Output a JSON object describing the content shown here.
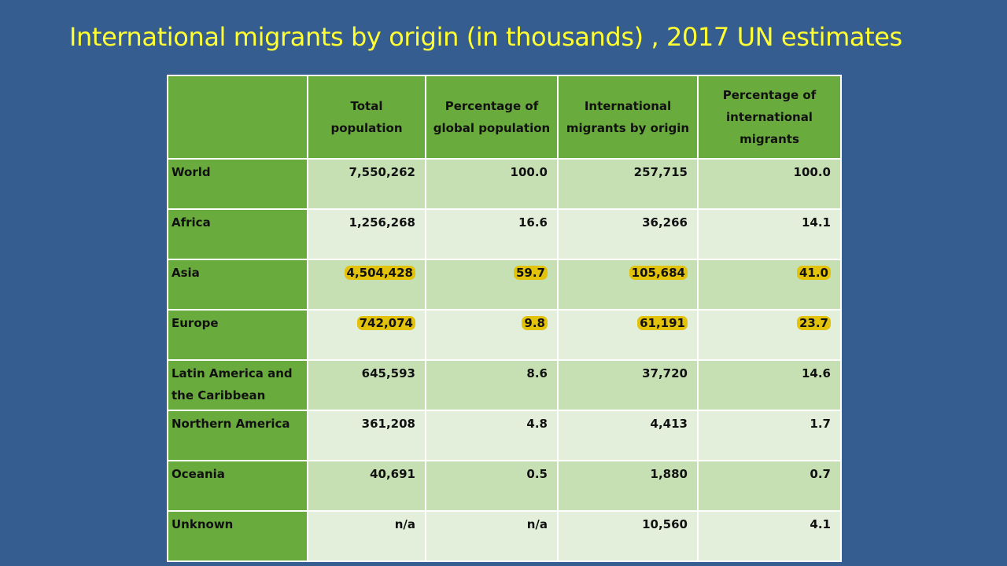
{
  "slide": {
    "title": "International migrants by origin (in thousands) , 2017 UN estimates"
  },
  "table": {
    "headers": [
      "",
      "Total population",
      "Percentage of global population",
      "International migrants by origin",
      "Percentage of international migrants"
    ],
    "rows": [
      {
        "region": "World",
        "total_population": "7,550,262",
        "pct_global_population": "100.0",
        "migrants_by_origin": "257,715",
        "pct_international_migrants": "100.0",
        "highlighted": false
      },
      {
        "region": "Africa",
        "total_population": "1,256,268",
        "pct_global_population": "16.6",
        "migrants_by_origin": "36,266",
        "pct_international_migrants": "14.1",
        "highlighted": false
      },
      {
        "region": "Asia",
        "total_population": "4,504,428",
        "pct_global_population": "59.7",
        "migrants_by_origin": "105,684",
        "pct_international_migrants": "41.0",
        "highlighted": true
      },
      {
        "region": "Europe",
        "total_population": "742,074",
        "pct_global_population": "9.8",
        "migrants_by_origin": "61,191",
        "pct_international_migrants": "23.7",
        "highlighted": true
      },
      {
        "region": "Latin America and the Caribbean",
        "total_population": "645,593",
        "pct_global_population": "8.6",
        "migrants_by_origin": "37,720",
        "pct_international_migrants": "14.6",
        "highlighted": false
      },
      {
        "region": "Northern America",
        "total_population": "361,208",
        "pct_global_population": "4.8",
        "migrants_by_origin": "4,413",
        "pct_international_migrants": "1.7",
        "highlighted": false
      },
      {
        "region": "Oceania",
        "total_population": "40,691",
        "pct_global_population": "0.5",
        "migrants_by_origin": "1,880",
        "pct_international_migrants": "0.7",
        "highlighted": false
      },
      {
        "region": "Unknown",
        "total_population": "n/a",
        "pct_global_population": "n/a",
        "migrants_by_origin": "10,560",
        "pct_international_migrants": "4.1",
        "highlighted": false
      }
    ]
  },
  "colors": {
    "background": "#355d8f",
    "title": "#ffff33",
    "header_green": "#6aab3d",
    "row_dark": "#c6e0b4",
    "row_light": "#e3efda",
    "highlight": "#e2c20a"
  }
}
